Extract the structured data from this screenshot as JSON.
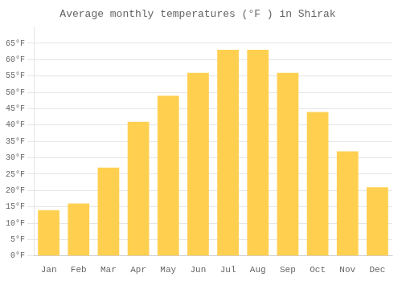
{
  "chart_data": {
    "type": "bar",
    "title": "Average monthly temperatures (°F ) in Shirak",
    "categories": [
      "Jan",
      "Feb",
      "Mar",
      "Apr",
      "May",
      "Jun",
      "Jul",
      "Aug",
      "Sep",
      "Oct",
      "Nov",
      "Dec"
    ],
    "values": [
      14,
      16,
      27,
      41,
      49,
      56,
      63,
      63,
      56,
      44,
      32,
      21
    ],
    "color": "#FFD050",
    "ylim": [
      0,
      70
    ],
    "yticks": [
      {
        "value": 0,
        "label": "0°F"
      },
      {
        "value": 5,
        "label": "5°F"
      },
      {
        "value": 10,
        "label": "10°F"
      },
      {
        "value": 15,
        "label": "15°F"
      },
      {
        "value": 20,
        "label": "20°F"
      },
      {
        "value": 25,
        "label": "25°F"
      },
      {
        "value": 30,
        "label": "30°F"
      },
      {
        "value": 35,
        "label": "35°F"
      },
      {
        "value": 40,
        "label": "40°F"
      },
      {
        "value": 45,
        "label": "45°F"
      },
      {
        "value": 50,
        "label": "50°F"
      },
      {
        "value": 55,
        "label": "55°F"
      },
      {
        "value": 60,
        "label": "60°F"
      },
      {
        "value": 65,
        "label": "65°F"
      }
    ],
    "grid": true
  }
}
